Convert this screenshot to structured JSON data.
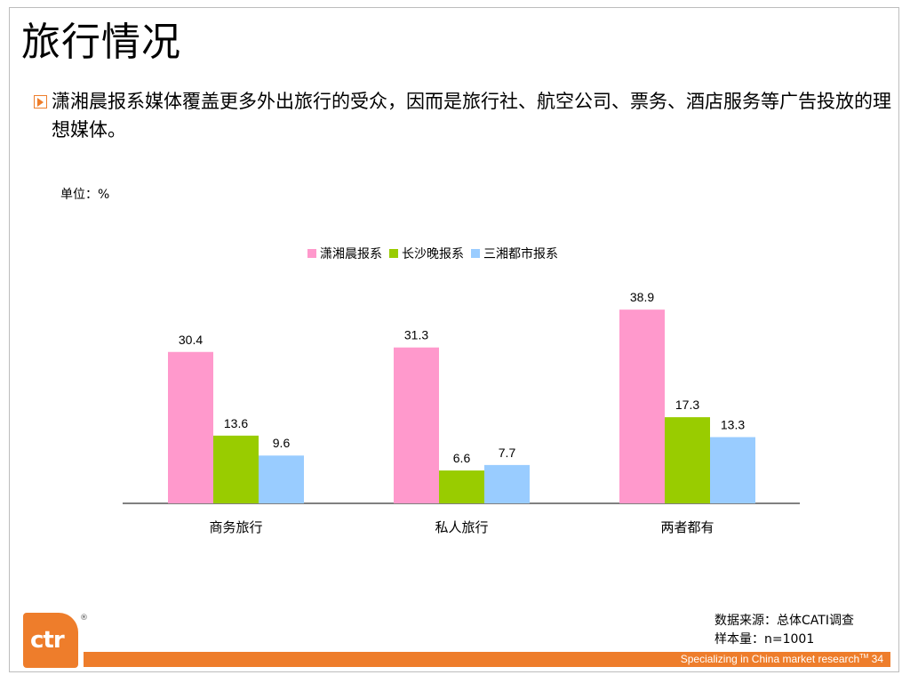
{
  "page": {
    "title": "旅行情况",
    "intro": "潇湘晨报系媒体覆盖更多外出旅行的受众，因而是旅行社、航空公司、票务、酒店服务等广告投放的理想媒体。",
    "unit": "单位：%",
    "source_line1": "数据来源：总体CATI调查",
    "source_line2": "样本量：n=1001",
    "footer_text": "Specializing in China market research",
    "footer_tm": "TM",
    "page_number": "34",
    "logo_text": "ctr",
    "logo_reg": "®",
    "accent_color": "#EE7D2B"
  },
  "chart_data": {
    "type": "bar",
    "title": "",
    "xlabel": "",
    "ylabel": "",
    "categories": [
      "商务旅行",
      "私人旅行",
      "两者都有"
    ],
    "series": [
      {
        "name": "潇湘晨报系",
        "color": "#FF99CC",
        "values": [
          30.4,
          31.3,
          38.9
        ]
      },
      {
        "name": "长沙晚报系",
        "color": "#99CC00",
        "values": [
          13.6,
          6.6,
          17.3
        ]
      },
      {
        "name": "三湘都市报系",
        "color": "#99CCFF",
        "values": [
          9.6,
          7.7,
          13.3
        ]
      }
    ],
    "ylim": [
      0,
      40
    ],
    "grid": false,
    "legend_position": "top"
  }
}
